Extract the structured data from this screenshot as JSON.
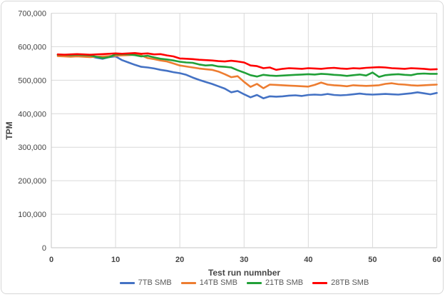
{
  "chart_data": {
    "type": "line",
    "title": "",
    "xlabel": "Test run numnber",
    "ylabel": "TPM",
    "xlim": [
      0,
      60
    ],
    "ylim": [
      0,
      700000
    ],
    "grid": true,
    "legend_position": "bottom",
    "x_tick_labels": [
      "0",
      "10",
      "20",
      "30",
      "40",
      "50",
      "60"
    ],
    "y_tick_labels": [
      "0",
      "100,000",
      "200,000",
      "300,000",
      "400,000",
      "500,000",
      "600,000",
      "700,000"
    ],
    "x": [
      1,
      2,
      3,
      4,
      5,
      6,
      7,
      8,
      9,
      10,
      11,
      12,
      13,
      14,
      15,
      16,
      17,
      18,
      19,
      20,
      21,
      22,
      23,
      24,
      25,
      26,
      27,
      28,
      29,
      30,
      31,
      32,
      33,
      34,
      35,
      36,
      37,
      38,
      39,
      40,
      41,
      42,
      43,
      44,
      45,
      46,
      47,
      48,
      49,
      50,
      51,
      52,
      53,
      54,
      55,
      56,
      57,
      58,
      59,
      60
    ],
    "series": [
      {
        "name": "7TB SMB",
        "color": "#4472C4",
        "values": [
          576000,
          575000,
          574000,
          575000,
          573000,
          572000,
          567000,
          564000,
          569000,
          571000,
          560000,
          553000,
          546000,
          540000,
          538000,
          535000,
          531000,
          528000,
          524000,
          521000,
          516000,
          508000,
          501000,
          495000,
          489000,
          482000,
          475000,
          464000,
          468000,
          458000,
          449000,
          456000,
          446000,
          452000,
          451000,
          452000,
          454000,
          455000,
          453000,
          456000,
          457000,
          456000,
          459000,
          456000,
          455000,
          456000,
          458000,
          460000,
          458000,
          457000,
          458000,
          459000,
          458000,
          457000,
          459000,
          461000,
          464000,
          461000,
          458000,
          462000
        ]
      },
      {
        "name": "14TB SMB",
        "color": "#ED7D31",
        "values": [
          572000,
          571000,
          570000,
          571000,
          570000,
          569000,
          570000,
          571000,
          572000,
          573000,
          574000,
          575000,
          576000,
          574000,
          566000,
          563000,
          559000,
          556000,
          550000,
          544000,
          541000,
          538000,
          535000,
          533000,
          531000,
          526000,
          518000,
          509000,
          512000,
          495000,
          480000,
          489000,
          476000,
          487000,
          486000,
          485000,
          484000,
          483000,
          482000,
          481000,
          486000,
          493000,
          487000,
          485000,
          484000,
          482000,
          485000,
          484000,
          483000,
          484000,
          485000,
          489000,
          491000,
          488000,
          487000,
          485000,
          484000,
          485000,
          486000,
          487000
        ]
      },
      {
        "name": "21TB SMB",
        "color": "#21A038",
        "values": [
          576000,
          576000,
          575000,
          576000,
          575000,
          574000,
          570000,
          566000,
          569000,
          577000,
          578000,
          577000,
          575000,
          571000,
          573000,
          568000,
          564000,
          562000,
          559000,
          555000,
          553000,
          552000,
          547000,
          544000,
          545000,
          541000,
          540000,
          538000,
          530000,
          523000,
          515000,
          511000,
          516000,
          514000,
          513000,
          514000,
          515000,
          516000,
          517000,
          518000,
          517000,
          519000,
          518000,
          516000,
          515000,
          513000,
          515000,
          517000,
          514000,
          523000,
          510000,
          515000,
          517000,
          518000,
          516000,
          515000,
          519000,
          520000,
          519000,
          519000
        ]
      },
      {
        "name": "28TB SMB",
        "color": "#FF0000",
        "values": [
          577000,
          576000,
          577000,
          578000,
          577000,
          576000,
          577000,
          578000,
          579000,
          580000,
          579000,
          580000,
          581000,
          579000,
          580000,
          577000,
          578000,
          574000,
          571000,
          565000,
          564000,
          563000,
          561000,
          560000,
          559000,
          557000,
          556000,
          558000,
          556000,
          553000,
          544000,
          542000,
          536000,
          538000,
          531000,
          534000,
          536000,
          535000,
          534000,
          536000,
          535000,
          534000,
          536000,
          537000,
          535000,
          534000,
          536000,
          535000,
          537000,
          538000,
          539000,
          538000,
          536000,
          535000,
          534000,
          536000,
          535000,
          534000,
          532000,
          533000
        ]
      }
    ],
    "colors": {
      "gridline": "#D9D9D9",
      "axis_line": "#C6C6C6",
      "tick_label": "#454545"
    }
  }
}
